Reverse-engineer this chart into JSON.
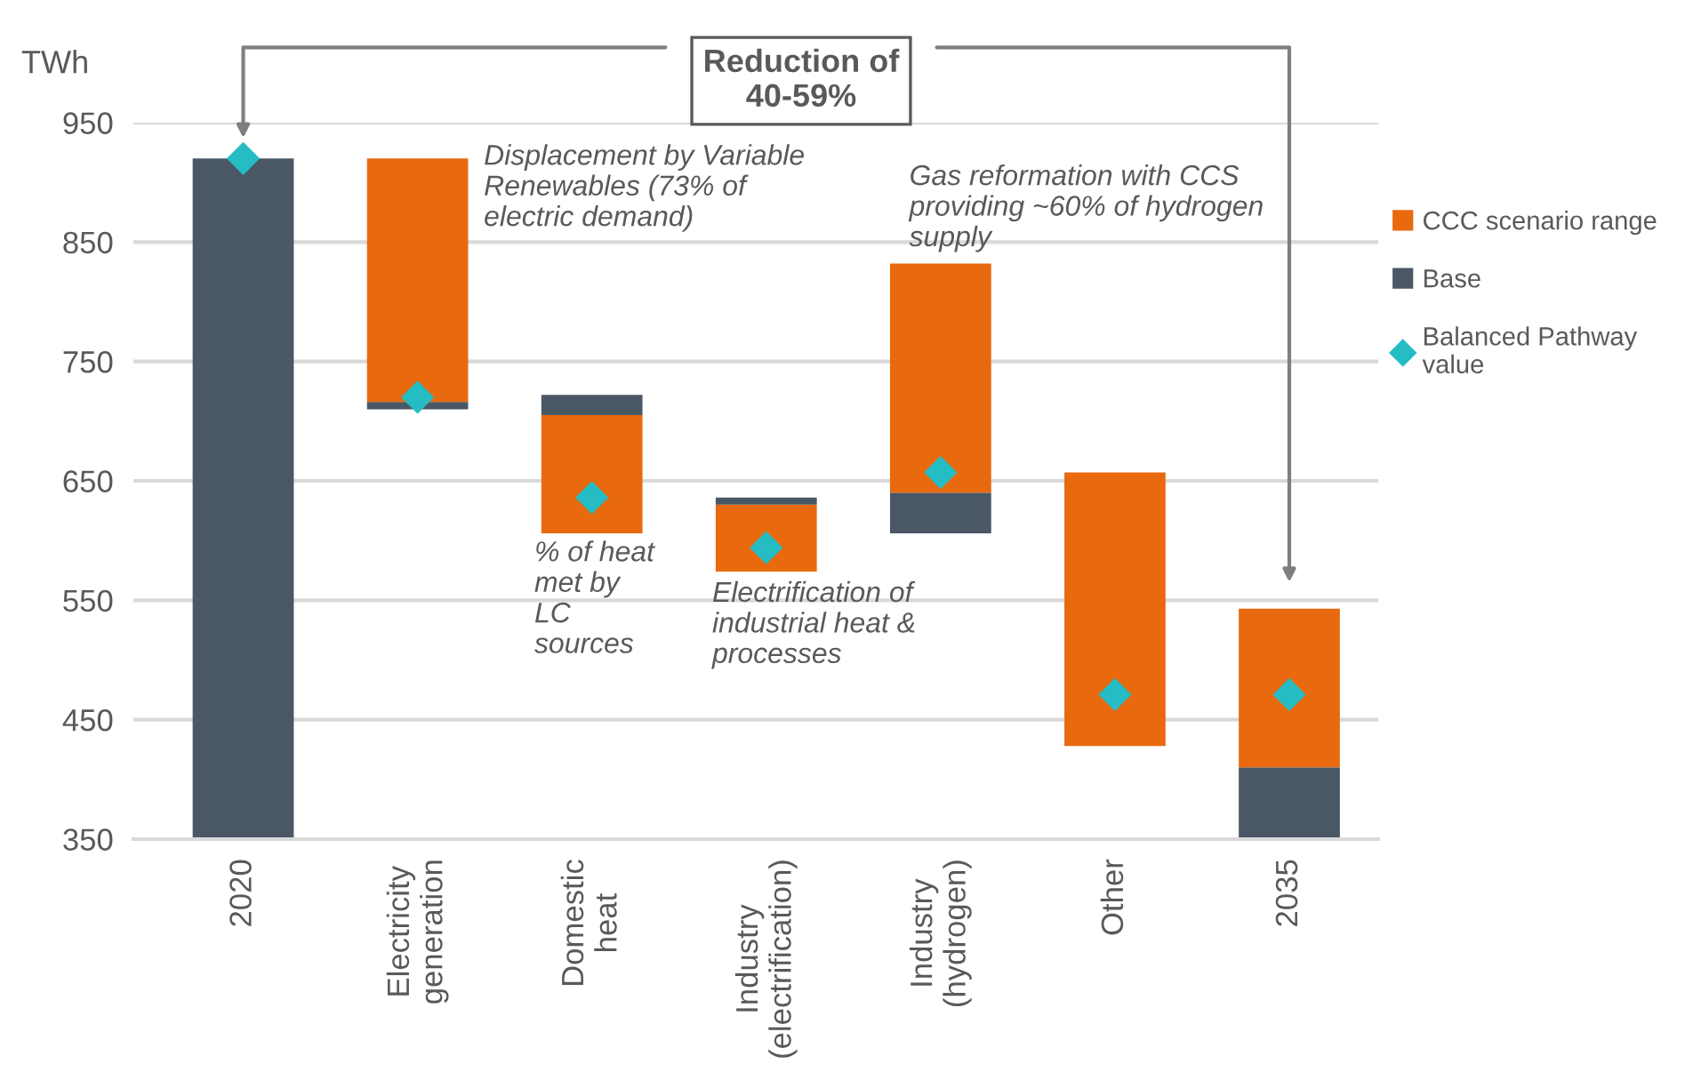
{
  "chart_data": {
    "type": "bar",
    "ylabel": "TWh",
    "categories": [
      "2020",
      "Electricity\ngeneration",
      "Domestic\nheat",
      "Industry\n(electrification)",
      "Industry\n(hydrogen)",
      "Other",
      "2035"
    ],
    "series": [
      {
        "name": "CCC scenario range",
        "color": "#e8690e",
        "base": [
          null,
          716,
          606,
          574,
          640,
          428,
          410
        ],
        "values": [
          null,
          204,
          99,
          56,
          192,
          229,
          133
        ]
      },
      {
        "name": "Base",
        "color": "#4a5764",
        "base": [
          350,
          710,
          705,
          630,
          606,
          null,
          350
        ],
        "values": [
          570,
          6,
          17,
          6,
          34,
          null,
          60
        ]
      },
      {
        "name": "Balanced Pathway\nvalue",
        "type": "scatter",
        "marker": "diamond",
        "color": "#26bcc4",
        "values": [
          920,
          720,
          636,
          594,
          657,
          471,
          471
        ]
      }
    ],
    "ylim": [
      350,
      950
    ],
    "yticks": [
      350,
      450,
      550,
      650,
      750,
      850,
      950
    ],
    "grid": "y",
    "legend": "right",
    "annotations": [
      "Displacement by Variable\nRenewables (73% of\nelectric demand)",
      "% of heat\nmet by\nLC\nsources",
      "Electrification of\nindustrial heat &\nprocesses",
      "Gas reformation with CCS\nproviding ~60% of hydrogen\nsupply",
      "Reduction of\n40-59%"
    ]
  }
}
